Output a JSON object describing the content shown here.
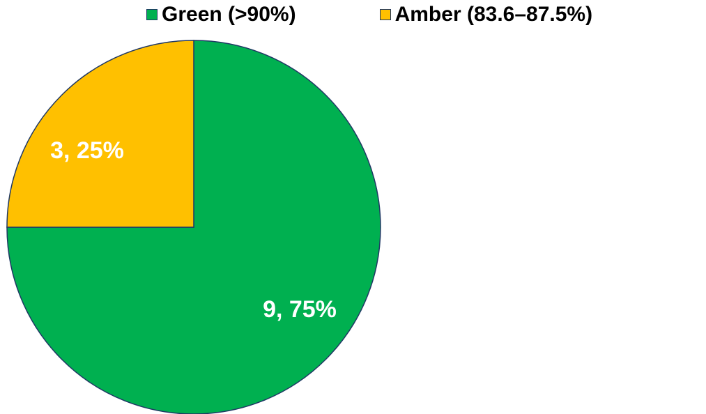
{
  "chart_data": {
    "type": "pie",
    "categories": [
      "Green (>90%)",
      "Amber (83.6–87.5%)"
    ],
    "values": [
      9,
      3
    ],
    "percentages": [
      75,
      25
    ],
    "data_labels": [
      "9, 75%",
      "3, 25%"
    ],
    "colors": [
      "#00b050",
      "#ffc000"
    ],
    "outline_color": "#1f3864",
    "legend_position": "top",
    "start_angle": "12 o'clock",
    "direction": "clockwise"
  },
  "legend": {
    "items": [
      {
        "label": "Green (>90%)",
        "color": "#00b050"
      },
      {
        "label": "Amber (83.6–87.5%)",
        "color": "#ffc000"
      }
    ]
  }
}
